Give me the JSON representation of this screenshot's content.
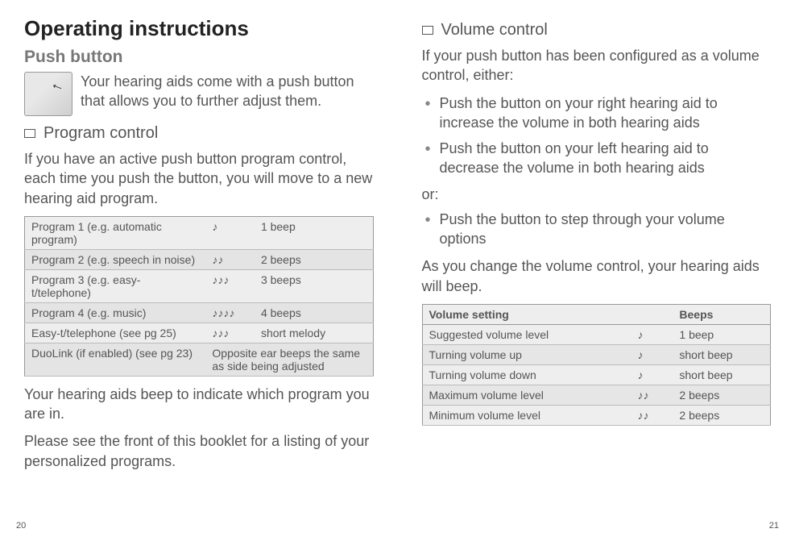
{
  "left": {
    "h1": "Operating instructions",
    "h2": "Push button",
    "intro": "Your hearing aids come with a push button that allows you to further adjust them.",
    "section1_title": "Program control",
    "section1_body": "If you have an active push button program control, each time you push the button, you will move to a new hearing aid program.",
    "program_table": [
      {
        "name": "Program 1 (e.g. automatic program)",
        "notes": "♪",
        "beeps": "1 beep"
      },
      {
        "name": "Program 2 (e.g. speech in noise)",
        "notes": "♪♪",
        "beeps": "2 beeps"
      },
      {
        "name": "Program 3 (e.g. easy-t/telephone)",
        "notes": "♪♪♪",
        "beeps": "3 beeps"
      },
      {
        "name": "Program 4 (e.g. music)",
        "notes": "♪♪♪♪",
        "beeps": "4 beeps"
      },
      {
        "name": "Easy-t/telephone (see pg 25)",
        "notes": "♪♪♪",
        "beeps": "short melody"
      },
      {
        "name": "DuoLink (if enabled) (see pg 23)",
        "notes": "",
        "beeps": "Opposite ear beeps the same as side being adjusted"
      }
    ],
    "after_table_1": "Your hearing aids beep to indicate which program you are in.",
    "after_table_2": "Please see the front of this booklet for a listing of your personalized programs.",
    "page_num": "20"
  },
  "right": {
    "section_title": "Volume control",
    "intro": "If your push button has been configured as a volume control, either:",
    "bullets1": [
      "Push the button on your right hearing aid to increase the volume in both hearing aids",
      "Push the button on your left hearing aid to decrease the volume in both hearing aids"
    ],
    "or": "or:",
    "bullets2": [
      "Push the button to step through your volume options"
    ],
    "body2": "As you change the volume control, your hearing aids will beep.",
    "vol_table": {
      "headers": [
        "Volume setting",
        "",
        "Beeps"
      ],
      "rows": [
        {
          "name": "Suggested volume level",
          "notes": "♪",
          "beeps": "1 beep"
        },
        {
          "name": "Turning volume up",
          "notes": "♪",
          "beeps": "short beep"
        },
        {
          "name": "Turning volume down",
          "notes": "♪",
          "beeps": "short beep"
        },
        {
          "name": "Maximum volume level",
          "notes": "♪♪",
          "beeps": "2 beeps"
        },
        {
          "name": "Minimum volume level",
          "notes": "♪♪",
          "beeps": "2 beeps"
        }
      ]
    },
    "page_num": "21"
  }
}
